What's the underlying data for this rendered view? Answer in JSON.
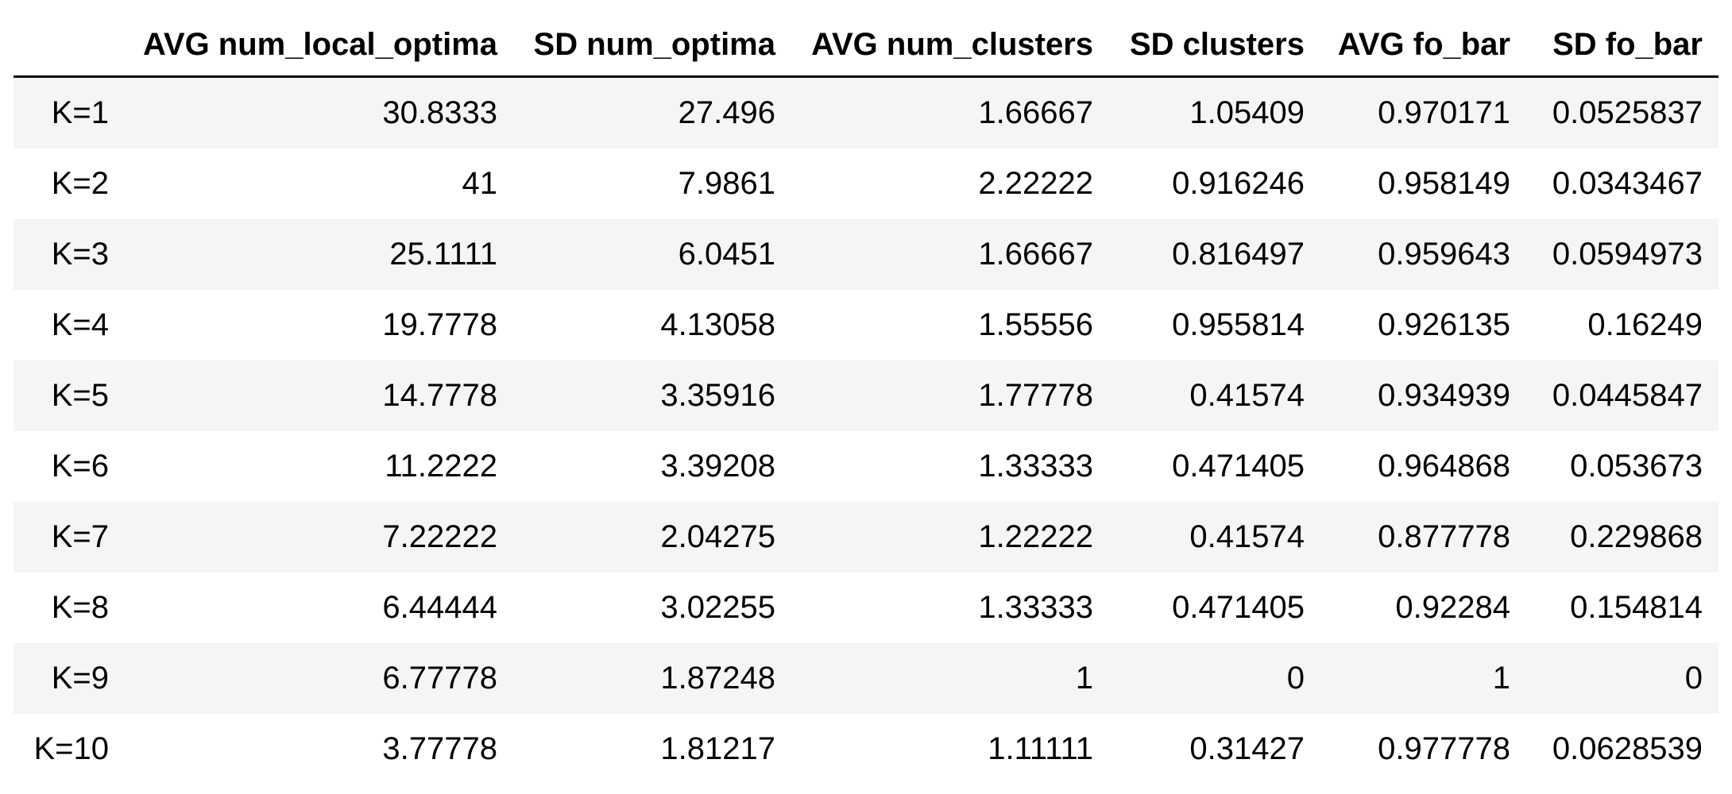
{
  "table": {
    "corner_header": "",
    "columns": [
      "AVG num_local_optima",
      "SD num_optima",
      "AVG num_clusters",
      "SD clusters",
      "AVG fo_bar",
      "SD fo_bar"
    ],
    "rows": [
      {
        "label": "K=1",
        "values": [
          "30.8333",
          "27.496",
          "1.66667",
          "1.05409",
          "0.970171",
          "0.0525837"
        ]
      },
      {
        "label": "K=2",
        "values": [
          "41",
          "7.9861",
          "2.22222",
          "0.916246",
          "0.958149",
          "0.0343467"
        ]
      },
      {
        "label": "K=3",
        "values": [
          "25.1111",
          "6.0451",
          "1.66667",
          "0.816497",
          "0.959643",
          "0.0594973"
        ]
      },
      {
        "label": "K=4",
        "values": [
          "19.7778",
          "4.13058",
          "1.55556",
          "0.955814",
          "0.926135",
          "0.16249"
        ]
      },
      {
        "label": "K=5",
        "values": [
          "14.7778",
          "3.35916",
          "1.77778",
          "0.41574",
          "0.934939",
          "0.0445847"
        ]
      },
      {
        "label": "K=6",
        "values": [
          "11.2222",
          "3.39208",
          "1.33333",
          "0.471405",
          "0.964868",
          "0.053673"
        ]
      },
      {
        "label": "K=7",
        "values": [
          "7.22222",
          "2.04275",
          "1.22222",
          "0.41574",
          "0.877778",
          "0.229868"
        ]
      },
      {
        "label": "K=8",
        "values": [
          "6.44444",
          "3.02255",
          "1.33333",
          "0.471405",
          "0.92284",
          "0.154814"
        ]
      },
      {
        "label": "K=9",
        "values": [
          "6.77778",
          "1.87248",
          "1",
          "0",
          "1",
          "0"
        ]
      },
      {
        "label": "K=10",
        "values": [
          "3.77778",
          "1.81217",
          "1.11111",
          "0.31427",
          "0.977778",
          "0.0628539"
        ]
      }
    ]
  }
}
